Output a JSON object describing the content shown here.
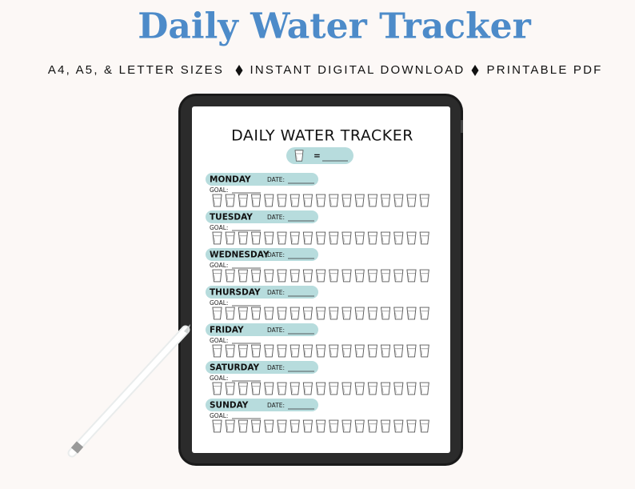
{
  "header": {
    "title": "Daily Water Tracker",
    "features": [
      "A4, A5, & LETTER SIZES",
      "INSTANT DIGITAL DOWNLOAD",
      "PRINTABLE PDF"
    ]
  },
  "tracker": {
    "title": "DAILY WATER TRACKER",
    "equals": "=",
    "days": [
      {
        "name": "MONDAY",
        "date_label": "DATE:",
        "goal_label": "GOAL:"
      },
      {
        "name": "TUESDAY",
        "date_label": "DATE:",
        "goal_label": "GOAL:"
      },
      {
        "name": "WEDNESDAY",
        "date_label": "DATE:",
        "goal_label": "GOAL:"
      },
      {
        "name": "THURSDAY",
        "date_label": "DATE:",
        "goal_label": "GOAL:"
      },
      {
        "name": "FRIDAY",
        "date_label": "DATE:",
        "goal_label": "GOAL:"
      },
      {
        "name": "SATURDAY",
        "date_label": "DATE:",
        "goal_label": "GOAL:"
      },
      {
        "name": "SUNDAY",
        "date_label": "DATE:",
        "goal_label": "GOAL:"
      }
    ]
  }
}
